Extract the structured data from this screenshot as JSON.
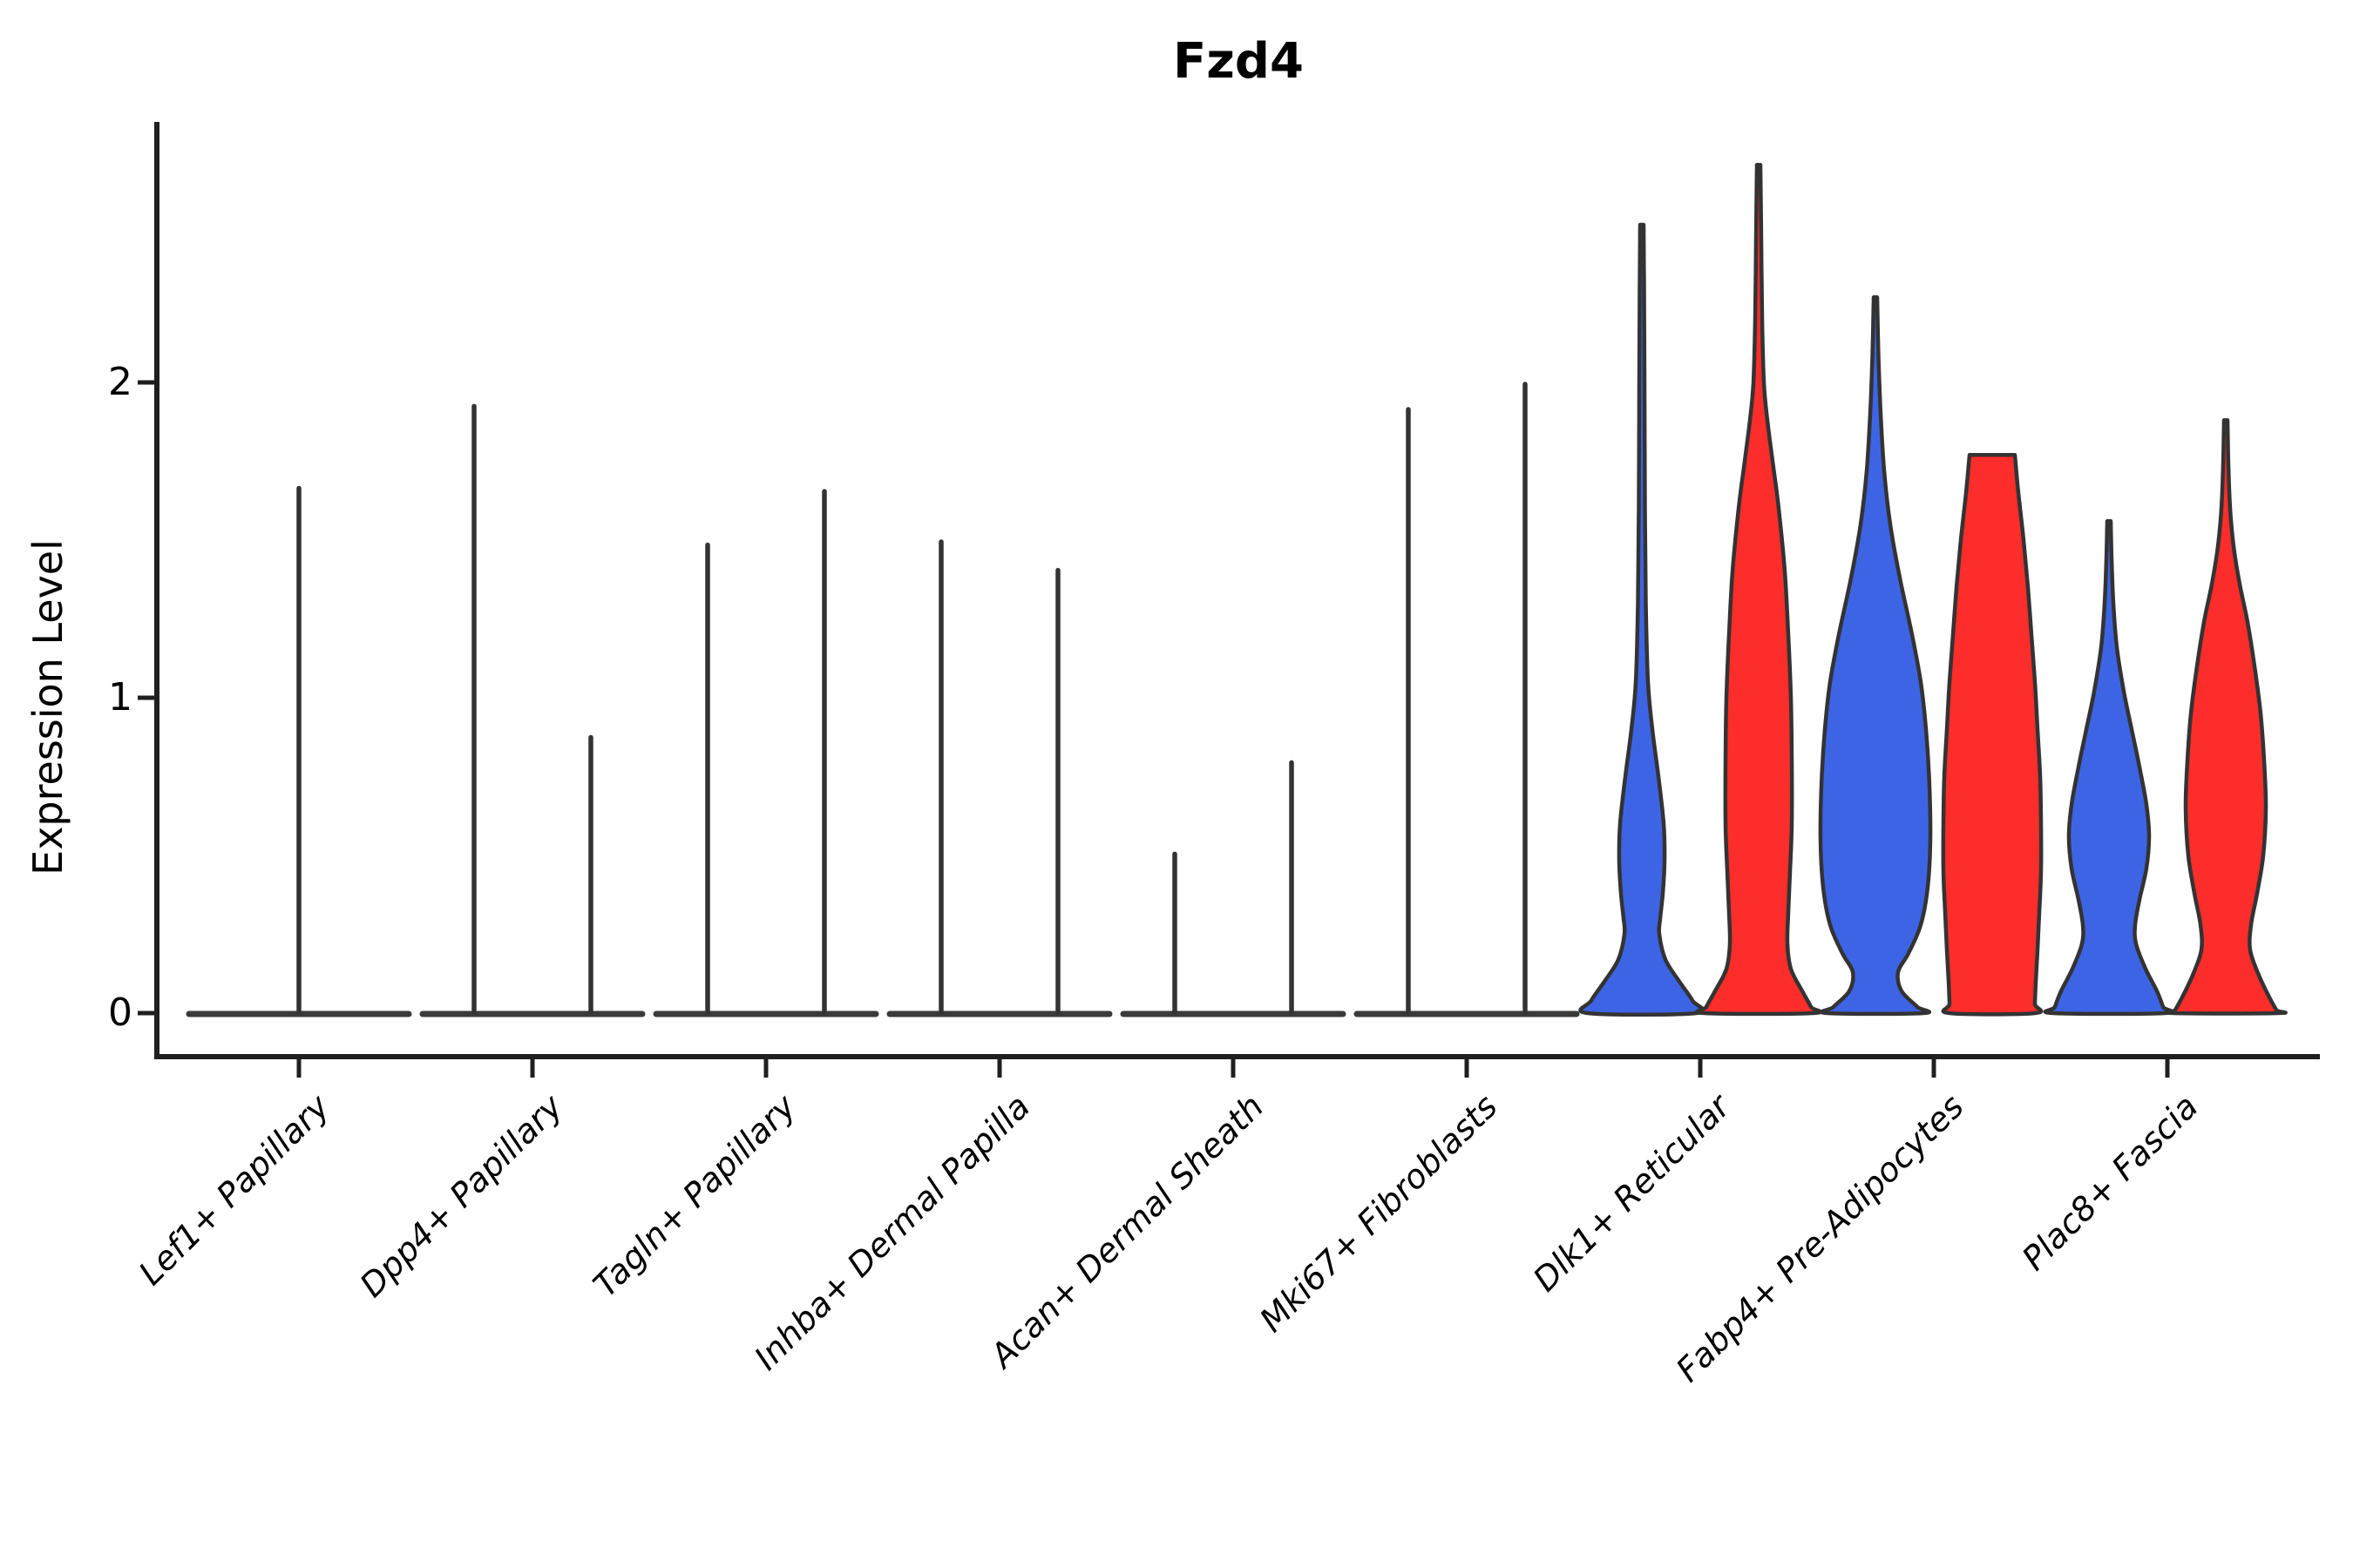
{
  "page": {
    "background": "#ffffff"
  },
  "chart_data": {
    "type": "violin",
    "title": "Fzd4",
    "ylabel": "Expression Level",
    "xlabel": "",
    "yticks": [
      0,
      1,
      2
    ],
    "ylim": [
      -0.07,
      2.83
    ],
    "grid": false,
    "legend": "none",
    "axis_color": "#1f1f1f",
    "outline_color": "#333333",
    "collapsed_line_color": "#3a3a3a",
    "split_colors": {
      "blue": "#3E64E6",
      "red": "#FC2D2A"
    },
    "categories": [
      "Lef1+ Papillary",
      "Dpp4+ Papillary",
      "Tagln+ Papillary",
      "Inhba+ Dermal Papilla",
      "Acan+ Dermal Sheath",
      "Mki67+ Fibroblasts",
      "Dlk1+ Reticular",
      "Fabp4+ Pre-Adipocytes",
      "Plac8+ Fascia"
    ],
    "violins": [
      {
        "parts": [
          {
            "side": "center",
            "style": "collapsed",
            "fill": null,
            "max": 1.67
          }
        ]
      },
      {
        "parts": [
          {
            "side": "left",
            "style": "collapsed",
            "fill": null,
            "max": 1.93
          },
          {
            "side": "right",
            "style": "collapsed",
            "fill": null,
            "max": 0.88
          }
        ]
      },
      {
        "parts": [
          {
            "side": "left",
            "style": "collapsed",
            "fill": null,
            "max": 1.49
          },
          {
            "side": "right",
            "style": "collapsed",
            "fill": null,
            "max": 1.66
          }
        ]
      },
      {
        "parts": [
          {
            "side": "left",
            "style": "collapsed",
            "fill": null,
            "max": 1.5
          },
          {
            "side": "right",
            "style": "collapsed",
            "fill": null,
            "max": 1.41
          }
        ]
      },
      {
        "parts": [
          {
            "side": "left",
            "style": "collapsed",
            "fill": null,
            "max": 0.51
          },
          {
            "side": "right",
            "style": "collapsed",
            "fill": null,
            "max": 0.8
          }
        ]
      },
      {
        "parts": [
          {
            "side": "left",
            "style": "collapsed",
            "fill": null,
            "max": 1.92
          },
          {
            "side": "right",
            "style": "collapsed",
            "fill": null,
            "max": 2.0
          }
        ]
      },
      {
        "parts": [
          {
            "side": "left",
            "style": "filled",
            "fill": "blue",
            "max": 2.5,
            "profile": [
              [
                2.5,
                2
              ],
              [
                2.3,
                2.5
              ],
              [
                2.0,
                3
              ],
              [
                1.6,
                3.5
              ],
              [
                1.3,
                4.5
              ],
              [
                1.05,
                7
              ],
              [
                0.9,
                12
              ],
              [
                0.75,
                19
              ],
              [
                0.6,
                25
              ],
              [
                0.48,
                26
              ],
              [
                0.38,
                24
              ],
              [
                0.3,
                21
              ],
              [
                0.25,
                20
              ],
              [
                0.17,
                27
              ],
              [
                0.1,
                43
              ],
              [
                0.04,
                58
              ],
              [
                0,
                62
              ]
            ]
          },
          {
            "side": "right",
            "style": "filled",
            "fill": "red",
            "max": 2.69,
            "profile": [
              [
                2.69,
                2
              ],
              [
                2.45,
                3
              ],
              [
                2.2,
                4
              ],
              [
                2.0,
                6
              ],
              [
                1.88,
                10
              ],
              [
                1.75,
                16
              ],
              [
                1.6,
                23
              ],
              [
                1.4,
                30
              ],
              [
                1.2,
                34
              ],
              [
                1.0,
                37
              ],
              [
                0.8,
                38
              ],
              [
                0.6,
                38
              ],
              [
                0.45,
                36
              ],
              [
                0.32,
                34
              ],
              [
                0.22,
                33
              ],
              [
                0.14,
                37
              ],
              [
                0.07,
                50
              ],
              [
                0.02,
                60
              ],
              [
                0,
                62
              ]
            ]
          }
        ]
      },
      {
        "parts": [
          {
            "side": "left",
            "style": "filled",
            "fill": "blue",
            "max": 2.27,
            "profile": [
              [
                2.27,
                2
              ],
              [
                2.08,
                3.5
              ],
              [
                1.9,
                6
              ],
              [
                1.72,
                10
              ],
              [
                1.55,
                17
              ],
              [
                1.38,
                28
              ],
              [
                1.2,
                42
              ],
              [
                1.05,
                52
              ],
              [
                0.9,
                58
              ],
              [
                0.72,
                62
              ],
              [
                0.55,
                63
              ],
              [
                0.4,
                60
              ],
              [
                0.28,
                52
              ],
              [
                0.19,
                38
              ],
              [
                0.13,
                26
              ],
              [
                0.07,
                30
              ],
              [
                0.02,
                48
              ],
              [
                0,
                55
              ]
            ]
          },
          {
            "side": "right",
            "style": "filled",
            "fill": "red",
            "max": 1.77,
            "profile": [
              [
                1.77,
                26
              ],
              [
                1.65,
                30
              ],
              [
                1.5,
                36
              ],
              [
                1.35,
                41
              ],
              [
                1.2,
                45
              ],
              [
                1.05,
                49
              ],
              [
                0.9,
                52
              ],
              [
                0.75,
                55
              ],
              [
                0.6,
                56
              ],
              [
                0.45,
                56
              ],
              [
                0.32,
                54
              ],
              [
                0.2,
                52
              ],
              [
                0.1,
                50
              ],
              [
                0.03,
                49
              ],
              [
                0,
                49
              ]
            ]
          }
        ]
      },
      {
        "parts": [
          {
            "side": "left",
            "style": "filled",
            "fill": "blue",
            "max": 1.56,
            "profile": [
              [
                1.56,
                2
              ],
              [
                1.44,
                3
              ],
              [
                1.3,
                5
              ],
              [
                1.16,
                9
              ],
              [
                1.02,
                17
              ],
              [
                0.9,
                26
              ],
              [
                0.78,
                35
              ],
              [
                0.66,
                43
              ],
              [
                0.56,
                46
              ],
              [
                0.46,
                43
              ],
              [
                0.36,
                35
              ],
              [
                0.28,
                30
              ],
              [
                0.22,
                31
              ],
              [
                0.14,
                42
              ],
              [
                0.07,
                55
              ],
              [
                0.02,
                62
              ],
              [
                0,
                64
              ]
            ]
          },
          {
            "side": "right",
            "style": "filled",
            "fill": "red",
            "max": 1.88,
            "profile": [
              [
                1.88,
                2
              ],
              [
                1.74,
                3
              ],
              [
                1.6,
                5
              ],
              [
                1.48,
                9
              ],
              [
                1.36,
                16
              ],
              [
                1.24,
                25
              ],
              [
                1.1,
                33
              ],
              [
                0.95,
                40
              ],
              [
                0.8,
                44
              ],
              [
                0.65,
                46
              ],
              [
                0.5,
                43
              ],
              [
                0.38,
                36
              ],
              [
                0.28,
                29
              ],
              [
                0.2,
                28
              ],
              [
                0.12,
                38
              ],
              [
                0.05,
                50
              ],
              [
                0.01,
                58
              ],
              [
                0,
                60
              ]
            ]
          }
        ]
      }
    ]
  }
}
